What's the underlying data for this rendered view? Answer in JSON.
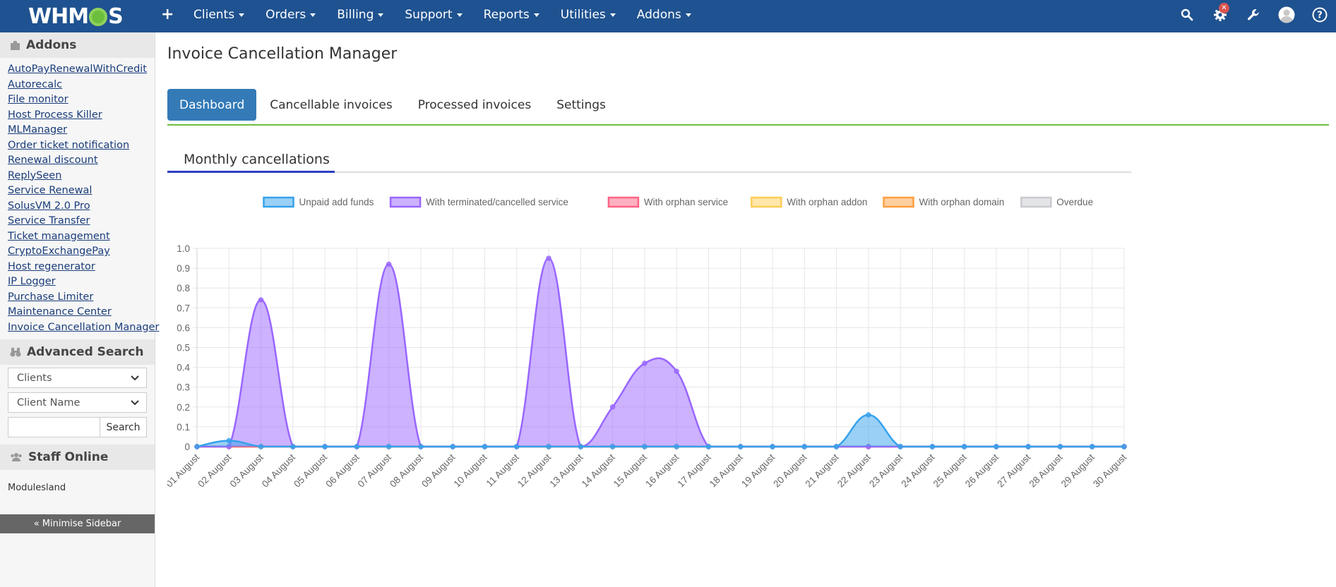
{
  "topbar": {
    "logo_text_left": "WHM",
    "logo_text_right": "S",
    "plus": "+",
    "nav": [
      "Clients",
      "Orders",
      "Billing",
      "Support",
      "Reports",
      "Utilities",
      "Addons"
    ],
    "icons": [
      "search-icon",
      "cog-alert-icon",
      "wrench-icon",
      "user-avatar-icon",
      "help-icon"
    ],
    "alert_badge": "✕"
  },
  "sidebar": {
    "addons_title": "Addons",
    "addons": [
      "AutoPayRenewalWithCredit",
      "Autorecalc",
      "File monitor",
      "Host Process Killer",
      "MLManager",
      "Order ticket notification",
      "Renewal discount",
      "ReplySeen",
      "Service Renewal",
      "SolusVM 2.0 Pro",
      "Service Transfer",
      "Ticket management",
      "CryptoExchangePay",
      "Host regenerator",
      "IP Logger",
      "Purchase Limiter",
      "Maintenance Center",
      "Invoice Cancellation Manager"
    ],
    "advanced_search_title": "Advanced Search",
    "search_type": "Clients",
    "search_field": "Client Name",
    "search_value": "",
    "search_button": "Search",
    "staff_online_title": "Staff Online",
    "staff_name": "Modulesland",
    "minimise": "« Minimise Sidebar"
  },
  "main": {
    "page_title": "Invoice Cancellation Manager",
    "tabs": [
      "Dashboard",
      "Cancellable invoices",
      "Processed invoices",
      "Settings"
    ],
    "active_tab": "Dashboard",
    "subtab": "Monthly cancellations"
  },
  "colors": {
    "navbar": "#1f5290",
    "active_tab": "#337ab7",
    "accent_green": "#6cbf3c",
    "subtab_underline": "#2d3fc4"
  },
  "chart_data": {
    "type": "area",
    "title": "",
    "xlabel": "",
    "ylabel": "",
    "ylim": [
      0,
      1.0
    ],
    "yticks": [
      0,
      0.1,
      0.2,
      0.3,
      0.4,
      0.5,
      0.6,
      0.7,
      0.8,
      0.9,
      1.0
    ],
    "legend_position": "top",
    "grid": true,
    "categories": [
      "01 August",
      "02 August",
      "03 August",
      "04 August",
      "05 August",
      "06 August",
      "07 August",
      "08 August",
      "09 August",
      "10 August",
      "11 August",
      "12 August",
      "13 August",
      "14 August",
      "15 August",
      "16 August",
      "17 August",
      "18 August",
      "19 August",
      "20 August",
      "21 August",
      "22 August",
      "23 August",
      "24 August",
      "25 August",
      "26 August",
      "27 August",
      "28 August",
      "29 August",
      "30 August"
    ],
    "series": [
      {
        "name": "Unpaid add funds",
        "color": "#36a2eb",
        "values": [
          0,
          0.03,
          0,
          0,
          0,
          0,
          0,
          0,
          0,
          0,
          0,
          0,
          0,
          0,
          0,
          0,
          0,
          0,
          0,
          0,
          0,
          0.16,
          0,
          0,
          0,
          0,
          0,
          0,
          0,
          0
        ]
      },
      {
        "name": "With terminated/cancelled service",
        "color": "#9966ff",
        "values": [
          0,
          0,
          0.74,
          0,
          0,
          0,
          0.92,
          0,
          0,
          0,
          0,
          0.95,
          0,
          0.2,
          0.42,
          0.38,
          0,
          0,
          0,
          0,
          0,
          0,
          0,
          0,
          0,
          0,
          0,
          0,
          0,
          0
        ]
      },
      {
        "name": "With orphan service",
        "color": "#ff6384",
        "values": [
          0,
          0,
          0,
          0,
          0,
          0,
          0,
          0,
          0,
          0,
          0,
          0,
          0,
          0,
          0,
          0,
          0,
          0,
          0,
          0,
          0,
          0,
          0,
          0,
          0,
          0,
          0,
          0,
          0,
          0
        ]
      },
      {
        "name": "With orphan addon",
        "color": "#ffcd56",
        "values": [
          0,
          0,
          0,
          0,
          0,
          0,
          0,
          0,
          0,
          0,
          0,
          0,
          0,
          0,
          0,
          0,
          0,
          0,
          0,
          0,
          0,
          0,
          0,
          0,
          0,
          0,
          0,
          0,
          0,
          0
        ]
      },
      {
        "name": "With orphan domain",
        "color": "#ff9f40",
        "values": [
          0,
          0,
          0,
          0,
          0,
          0,
          0,
          0,
          0,
          0,
          0,
          0,
          0,
          0,
          0,
          0,
          0,
          0,
          0,
          0,
          0,
          0,
          0,
          0,
          0,
          0,
          0,
          0,
          0,
          0
        ]
      },
      {
        "name": "Overdue",
        "color": "#c9cbcf",
        "values": [
          0,
          0,
          0,
          0,
          0,
          0,
          0,
          0,
          0,
          0,
          0,
          0,
          0,
          0,
          0,
          0,
          0,
          0,
          0,
          0,
          0,
          0,
          0,
          0,
          0,
          0,
          0,
          0,
          0,
          0
        ]
      }
    ]
  }
}
